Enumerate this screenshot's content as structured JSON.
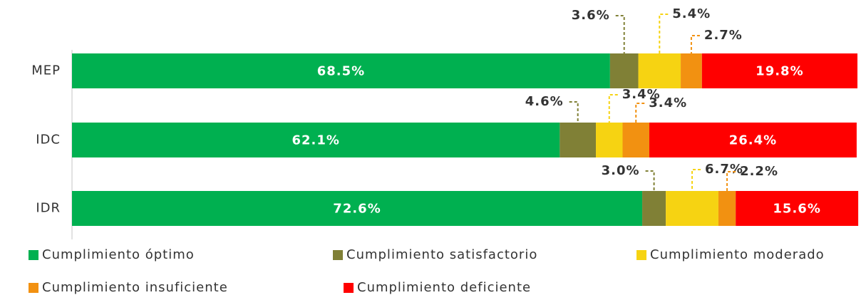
{
  "chart_data": {
    "type": "bar",
    "orientation": "horizontal",
    "stacked": true,
    "categories": [
      "MEP",
      "IDC",
      "IDR"
    ],
    "xlim": [
      0,
      100
    ],
    "series": [
      {
        "name": "Cumplimiento óptimo",
        "color": "#00b050",
        "values": [
          68.5,
          62.1,
          72.6
        ],
        "value_labels": [
          "68.5%",
          "62.1%",
          "72.6%"
        ]
      },
      {
        "name": "Cumplimiento satisfactorio",
        "color": "#808036",
        "values": [
          3.6,
          4.6,
          3.0
        ],
        "value_labels": [
          "3.6%",
          "4.6%",
          "3.0%"
        ]
      },
      {
        "name": "Cumplimiento moderado",
        "color": "#f6d312",
        "values": [
          5.4,
          3.4,
          6.7
        ],
        "value_labels": [
          "5.4%",
          "3.4%",
          "6.7%"
        ]
      },
      {
        "name": "Cumplimiento insuficiente",
        "color": "#f29111",
        "values": [
          2.7,
          3.4,
          2.2
        ],
        "value_labels": [
          "2.7%",
          "3.4%",
          "2.2%"
        ]
      },
      {
        "name": "Cumplimiento deficiente",
        "color": "#ff0000",
        "values": [
          19.8,
          26.4,
          15.6
        ],
        "value_labels": [
          "19.8%",
          "26.4%",
          "15.6%"
        ]
      }
    ]
  }
}
